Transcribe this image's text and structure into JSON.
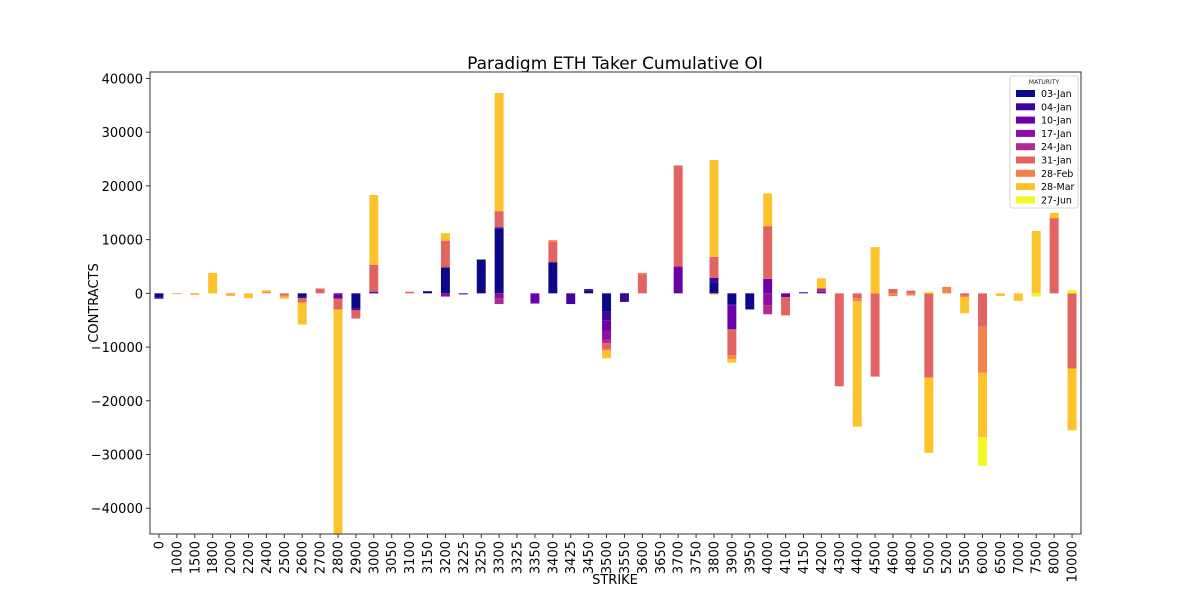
{
  "chart_data": {
    "type": "bar",
    "stacked": true,
    "title": "Paradigm ETH Taker Cumulative OI",
    "xlabel": "STRIKE",
    "ylabel": "CONTRACTS",
    "ylim": [
      -44800,
      41200
    ],
    "yticks": [
      -40000,
      -30000,
      -20000,
      -10000,
      0,
      10000,
      20000,
      30000,
      40000
    ],
    "ytick_labels": [
      "−40000",
      "−30000",
      "−20000",
      "−10000",
      "0",
      "10000",
      "20000",
      "30000",
      "40000"
    ],
    "legend_title": "MATURITY",
    "legend_position": "top-right",
    "categories": [
      "0",
      "1000",
      "1500",
      "1800",
      "2000",
      "2200",
      "2400",
      "2500",
      "2600",
      "2700",
      "2800",
      "2900",
      "3000",
      "3050",
      "3100",
      "3150",
      "3200",
      "3225",
      "3250",
      "3300",
      "3325",
      "3350",
      "3400",
      "3425",
      "3450",
      "3500",
      "3550",
      "3600",
      "3650",
      "3700",
      "3750",
      "3800",
      "3900",
      "3950",
      "4000",
      "4100",
      "4150",
      "4200",
      "4300",
      "4400",
      "4500",
      "4600",
      "4800",
      "5000",
      "5200",
      "5500",
      "6000",
      "6500",
      "7000",
      "7500",
      "8000",
      "10000"
    ],
    "series": [
      {
        "name": "03-Jan",
        "color": "#0d0887",
        "values": [
          -700,
          0,
          0,
          0,
          0,
          0,
          0,
          0,
          -600,
          0,
          0,
          -2800,
          0,
          0,
          0,
          400,
          4800,
          0,
          6300,
          12000,
          0,
          0,
          5800,
          0,
          500,
          -3400,
          -300,
          0,
          0,
          0,
          0,
          2000,
          -2000,
          -3000,
          0,
          0,
          0,
          0,
          0,
          0,
          0,
          0,
          0,
          0,
          0,
          0,
          0,
          0,
          0,
          0,
          0,
          0
        ]
      },
      {
        "name": "04-Jan",
        "color": "#41049d",
        "values": [
          -300,
          0,
          0,
          0,
          0,
          0,
          0,
          0,
          -300,
          0,
          -200,
          -300,
          300,
          0,
          0,
          0,
          0,
          -200,
          0,
          300,
          0,
          0,
          0,
          -2000,
          300,
          -1600,
          -1300,
          0,
          0,
          0,
          0,
          900,
          -300,
          0,
          0,
          0,
          200,
          0,
          0,
          0,
          0,
          0,
          0,
          0,
          0,
          0,
          0,
          0,
          0,
          0,
          0,
          0
        ]
      },
      {
        "name": "10-Jan",
        "color": "#6a00a8",
        "values": [
          0,
          0,
          0,
          0,
          0,
          0,
          0,
          0,
          0,
          0,
          -800,
          0,
          0,
          0,
          0,
          0,
          0,
          0,
          0,
          0,
          0,
          -1900,
          0,
          0,
          0,
          -2000,
          0,
          0,
          0,
          4800,
          0,
          0,
          -4400,
          0,
          2700,
          -700,
          0,
          300,
          0,
          0,
          0,
          0,
          0,
          0,
          0,
          0,
          0,
          0,
          0,
          0,
          0,
          0
        ]
      },
      {
        "name": "17-Jan",
        "color": "#8f0da4",
        "values": [
          0,
          0,
          0,
          0,
          0,
          0,
          0,
          0,
          0,
          0,
          0,
          0,
          0,
          0,
          0,
          0,
          -600,
          0,
          0,
          -1000,
          0,
          0,
          0,
          0,
          0,
          -1600,
          0,
          0,
          0,
          200,
          0,
          0,
          0,
          0,
          -2200,
          0,
          0,
          0,
          0,
          0,
          0,
          0,
          0,
          0,
          0,
          0,
          0,
          0,
          0,
          0,
          0,
          0
        ]
      },
      {
        "name": "24-Jan",
        "color": "#b12a90",
        "values": [
          0,
          0,
          0,
          0,
          0,
          0,
          0,
          0,
          0,
          0,
          0,
          0,
          0,
          0,
          0,
          0,
          0,
          0,
          0,
          -1000,
          0,
          0,
          0,
          0,
          0,
          -700,
          0,
          0,
          0,
          0,
          0,
          0,
          0,
          0,
          -1700,
          0,
          0,
          600,
          0,
          0,
          0,
          0,
          0,
          0,
          0,
          0,
          0,
          0,
          0,
          0,
          0,
          0
        ]
      },
      {
        "name": "31-Jan",
        "color": "#e16462",
        "values": [
          0,
          0,
          0,
          0,
          0,
          0,
          0,
          -300,
          -800,
          900,
          -2000,
          -1600,
          5000,
          0,
          300,
          0,
          5000,
          0,
          0,
          3000,
          0,
          0,
          3800,
          0,
          0,
          -1100,
          0,
          3500,
          0,
          18800,
          0,
          3900,
          -4800,
          0,
          9800,
          -3400,
          0,
          0,
          -17300,
          -900,
          -15500,
          800,
          500,
          -15700,
          0,
          -400,
          -6200,
          0,
          0,
          0,
          14000,
          -14000
        ]
      },
      {
        "name": "28-Feb",
        "color": "#f2844b",
        "values": [
          0,
          -100,
          -100,
          0,
          -200,
          0,
          300,
          -300,
          0,
          0,
          0,
          0,
          0,
          0,
          0,
          0,
          0,
          0,
          0,
          0,
          0,
          0,
          300,
          0,
          0,
          -300,
          0,
          300,
          0,
          0,
          0,
          -200,
          -700,
          0,
          0,
          0,
          0,
          0,
          0,
          -600,
          0,
          -500,
          -400,
          0,
          1200,
          -300,
          -8600,
          0,
          0,
          0,
          0,
          0
        ]
      },
      {
        "name": "28-Mar",
        "color": "#fcc32a",
        "values": [
          0,
          0,
          -200,
          3800,
          -300,
          -900,
          300,
          -400,
          -4100,
          0,
          -42000,
          0,
          13000,
          0,
          0,
          0,
          1400,
          0,
          0,
          22000,
          0,
          0,
          0,
          0,
          0,
          -1400,
          0,
          0,
          0,
          0,
          0,
          18000,
          -700,
          0,
          6100,
          0,
          0,
          1900,
          0,
          -23300,
          8600,
          0,
          0,
          -14000,
          0,
          -3000,
          -12000,
          -500,
          -1400,
          11600,
          1000,
          -11500
        ]
      },
      {
        "name": "27-Jun",
        "color": "#f0f921",
        "values": [
          0,
          0,
          0,
          0,
          0,
          0,
          0,
          0,
          0,
          0,
          0,
          0,
          0,
          0,
          0,
          0,
          0,
          0,
          0,
          0,
          0,
          0,
          0,
          0,
          0,
          0,
          0,
          0,
          0,
          0,
          0,
          0,
          0,
          0,
          0,
          0,
          0,
          0,
          0,
          0,
          0,
          0,
          0,
          300,
          0,
          0,
          -5300,
          0,
          0,
          -600,
          0,
          600
        ]
      }
    ]
  }
}
